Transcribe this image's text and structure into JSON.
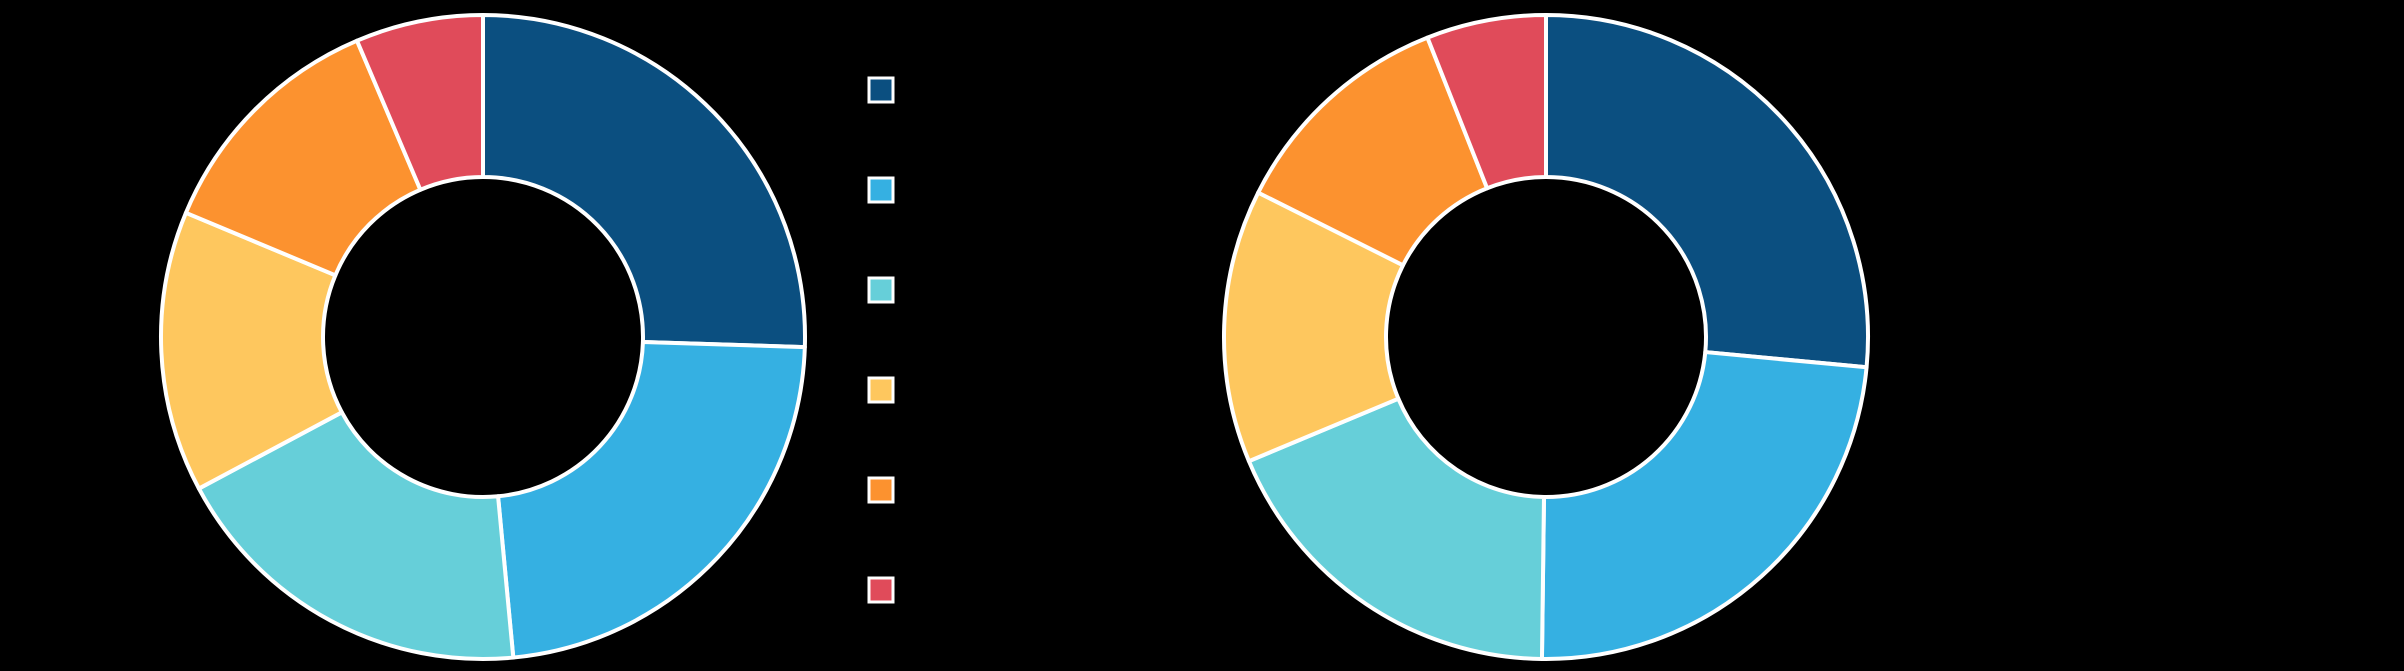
{
  "chart_data": [
    {
      "type": "pie",
      "donut": true,
      "values": [
        25.5,
        23,
        18.7,
        14.1,
        12.3,
        6.4
      ],
      "colors": [
        "#0b4f80",
        "#35b0e2",
        "#66cfd9",
        "#fec75e",
        "#fc922f",
        "#e04b5a"
      ]
    },
    {
      "type": "pie",
      "donut": true,
      "values": [
        26.5,
        23.7,
        18.5,
        13.7,
        11.6,
        6.0
      ],
      "colors": [
        "#0b4f80",
        "#35b0e2",
        "#66cfd9",
        "#fec75e",
        "#fc922f",
        "#e04b5a"
      ]
    }
  ]
}
